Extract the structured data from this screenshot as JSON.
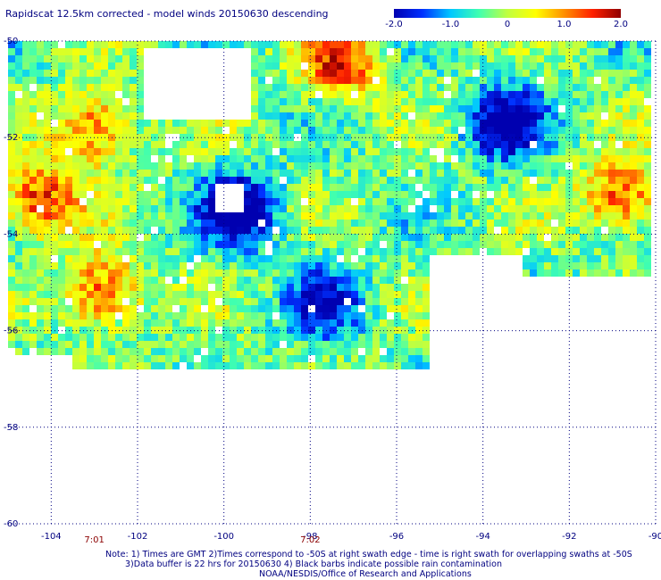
{
  "title": "Rapidscat 12.5km corrected - model winds 20150630 descending",
  "colorbar": {
    "min": -2.0,
    "max": 2.0,
    "labels": [
      "-2.0",
      "-1.0",
      "0",
      "1.0",
      "2.0"
    ],
    "label_values": [
      -2.0,
      -1.0,
      0,
      1.0,
      2.0
    ],
    "colors": [
      "#0000b0",
      "#0030ff",
      "#00c8ff",
      "#40ffb0",
      "#c0ff40",
      "#ffff00",
      "#ff9000",
      "#ff2000",
      "#900000"
    ]
  },
  "axes": {
    "x_ticks": [
      "-104",
      "-102",
      "-100",
      "-98",
      "-96",
      "-94",
      "-92",
      "-90"
    ],
    "x_values": [
      -104,
      -102,
      -100,
      -98,
      -96,
      -94,
      -92,
      -90
    ],
    "y_ticks": [
      "-50",
      "-52",
      "-54",
      "-56",
      "-58",
      "-60"
    ],
    "y_values": [
      -50,
      -52,
      -54,
      -56,
      -58,
      -60
    ],
    "lon_range": [
      -105,
      -90
    ],
    "lat_range": [
      -50,
      -60
    ],
    "grid": "dotted"
  },
  "times": [
    {
      "label": "7:01",
      "lon": -103
    },
    {
      "label": "7:02",
      "lon": -98
    }
  ],
  "map_data": {
    "type": "heatmap",
    "quantity": "wind speed difference",
    "hotspots": [
      {
        "lon": -103.0,
        "lat": -51.8,
        "value": 1.9
      },
      {
        "lon": -104.3,
        "lat": -53.3,
        "value": 2.0
      },
      {
        "lon": -102.8,
        "lat": -55.2,
        "value": 2.0
      },
      {
        "lon": -97.3,
        "lat": -50.5,
        "value": 1.9
      },
      {
        "lon": -90.8,
        "lat": -53.2,
        "value": 2.0
      },
      {
        "lon": -99.6,
        "lat": -53.5,
        "value": -1.9
      },
      {
        "lon": -93.5,
        "lat": -51.7,
        "value": -1.8
      },
      {
        "lon": -97.6,
        "lat": -55.4,
        "value": -1.2
      }
    ]
  },
  "notes": [
    "Note: 1) Times are GMT 2)Times correspond to -50S at right swath edge - time is right swath for overlapping swaths at -50S",
    "3)Data buffer is 22 hrs for 20150630 4) Black barbs indicate possible rain contamination",
    "NOAA/NESDIS/Office of Research and Applications"
  ]
}
